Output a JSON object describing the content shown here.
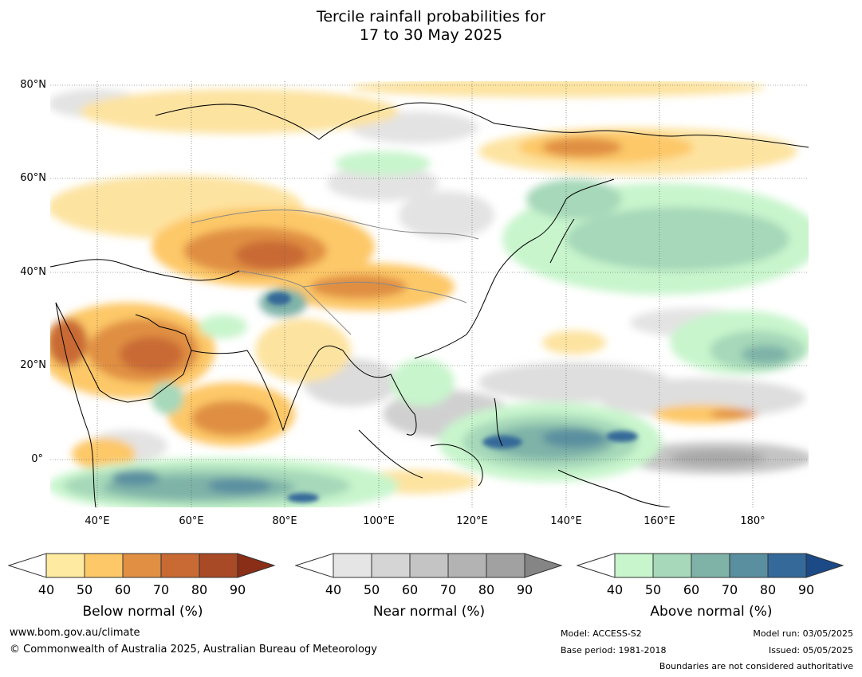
{
  "title": {
    "line1": "Tercile rainfall probabilities for",
    "line2": "17 to 30 May 2025"
  },
  "map": {
    "lat_labels": [
      "80°N",
      "60°N",
      "40°N",
      "20°N",
      "0°"
    ],
    "lon_labels": [
      "40°E",
      "60°E",
      "80°E",
      "100°E",
      "120°E",
      "140°E",
      "160°E",
      "180°"
    ]
  },
  "colorbars": [
    {
      "id": "below",
      "title": "Below normal (%)",
      "ticks": [
        "40",
        "50",
        "60",
        "70",
        "80",
        "90"
      ],
      "colors": [
        "#ffffff",
        "#feeaa0",
        "#fdc867",
        "#e08f43",
        "#c96a34",
        "#a84a25",
        "#8a2e17"
      ]
    },
    {
      "id": "near",
      "title": "Near normal (%)",
      "ticks": [
        "40",
        "50",
        "60",
        "70",
        "80",
        "90"
      ],
      "colors": [
        "#ffffff",
        "#e5e5e5",
        "#d5d5d5",
        "#c4c4c4",
        "#b3b3b3",
        "#a1a1a1",
        "#858585"
      ]
    },
    {
      "id": "above",
      "title": "Above normal (%)",
      "ticks": [
        "40",
        "50",
        "60",
        "70",
        "80",
        "90"
      ],
      "colors": [
        "#ffffff",
        "#c8f5cc",
        "#a6d8b9",
        "#7fb3a8",
        "#5a8fa0",
        "#356999",
        "#1b4a86"
      ]
    }
  ],
  "footer": {
    "website": "www.bom.gov.au/climate",
    "copyright": "© Commonwealth of Australia 2025, Australian Bureau of Meteorology",
    "model": "Model: ACCESS-S2",
    "base_period": "Base period: 1981-2018",
    "model_run": "Model run: 03/05/2025",
    "issued": "Issued: 05/05/2025",
    "disclaimer": "Boundaries are not considered authoritative"
  }
}
